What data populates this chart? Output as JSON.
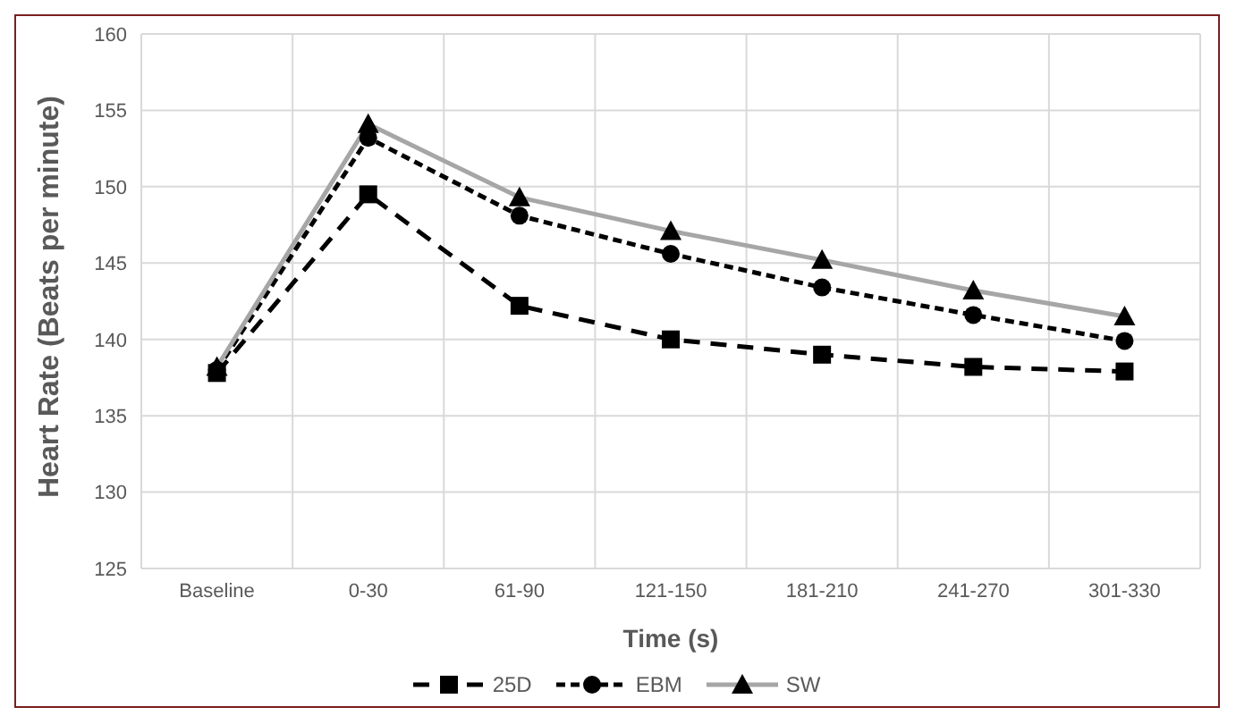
{
  "chart_data": {
    "type": "line",
    "xlabel": "Time (s)",
    "ylabel": "Heart Rate (Beats per minute)",
    "categories": [
      "Baseline",
      "0-30",
      "61-90",
      "121-150",
      "181-210",
      "241-270",
      "301-330"
    ],
    "series": [
      {
        "name": "25D",
        "color": "#000000",
        "marker": "square",
        "line_style": "dashed",
        "values": [
          137.8,
          149.5,
          142.2,
          140.0,
          139.0,
          138.2,
          137.9
        ]
      },
      {
        "name": "EBM",
        "color": "#000000",
        "marker": "circle",
        "line_style": "dotted",
        "values": [
          138.0,
          153.2,
          148.1,
          145.6,
          143.4,
          141.6,
          139.9
        ]
      },
      {
        "name": "SW",
        "color": "#a6a6a6",
        "marker": "triangle",
        "line_style": "solid",
        "values": [
          138.2,
          154.1,
          149.3,
          147.1,
          145.2,
          143.2,
          141.5
        ]
      }
    ],
    "ylim": [
      125,
      160
    ],
    "yticks": [
      125,
      130,
      135,
      140,
      145,
      150,
      155,
      160
    ],
    "grid": true,
    "legend": "bottom"
  }
}
